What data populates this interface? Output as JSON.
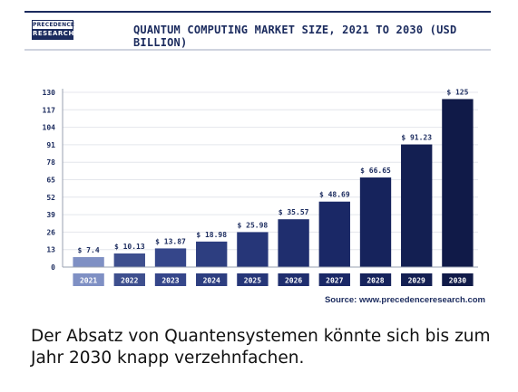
{
  "logo": {
    "line1": "PRECEDENCE",
    "line2": "RESEARCH"
  },
  "source": "Source: www.precedenceresearch.com",
  "caption": "Der Absatz von Quantensystemen könnte sich bis zum Jahr 2030 knapp verzehnfachen.",
  "colors": {
    "navy": "#1b2b5e",
    "bar_light": "#7f90c4",
    "gridline": "#e4e6ec"
  },
  "chart_data": {
    "type": "bar",
    "title": "QUANTUM COMPUTING MARKET SIZE, 2021 TO 2030 (USD BILLION)",
    "categories": [
      "2021",
      "2022",
      "2023",
      "2024",
      "2025",
      "2026",
      "2027",
      "2028",
      "2029",
      "2030"
    ],
    "values": [
      7.4,
      10.13,
      13.87,
      18.98,
      25.98,
      35.57,
      48.69,
      66.65,
      91.23,
      125
    ],
    "data_labels": [
      "$ 7.4",
      "$ 10.13",
      "$ 13.87",
      "$ 18.98",
      "$ 25.98",
      "$ 35.57",
      "$ 48.69",
      "$ 66.65",
      "$ 91.23",
      "$ 125"
    ],
    "yticks": [
      0,
      13,
      26,
      39,
      52,
      65,
      78,
      91,
      104,
      117,
      130
    ],
    "ylim": [
      0,
      130
    ],
    "grid": true,
    "legend": "none",
    "bar_colors": [
      "#7f90c4",
      "#3e4f8e",
      "#35468a",
      "#2d3e80",
      "#263678",
      "#1f2e6e",
      "#1a2866",
      "#16235c",
      "#131f52",
      "#101a48"
    ]
  }
}
